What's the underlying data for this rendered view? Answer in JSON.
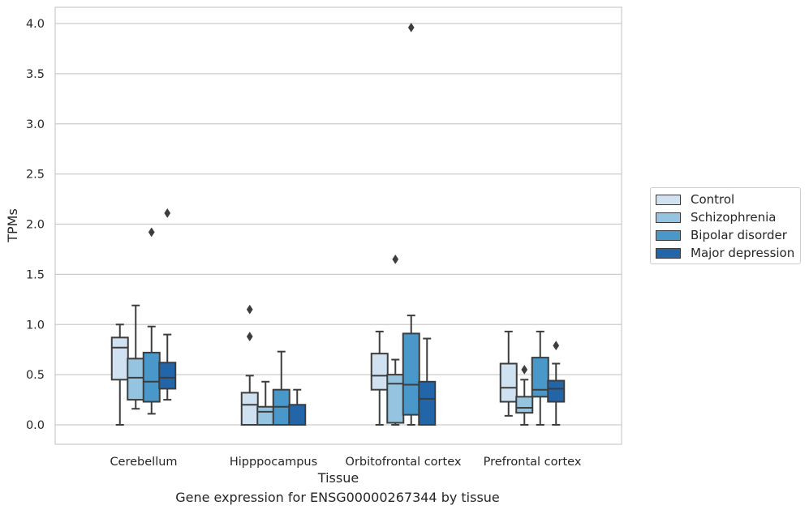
{
  "chart_data": {
    "type": "box",
    "ylabel": "TPMs",
    "xlabel": "Tissue",
    "ylim": [
      -0.19,
      4.17
    ],
    "yticks": [
      "0.0",
      "0.5",
      "1.0",
      "1.5",
      "2.0",
      "2.5",
      "3.0",
      "3.5",
      "4.0"
    ],
    "grid": true,
    "legend_position": "right",
    "categories": [
      "Cerebellum",
      "Hipppocampus",
      "Orbitofrontal cortex",
      "Prefrontal cortex"
    ],
    "series": [
      {
        "name": "Control",
        "color": "#d0e1f2",
        "boxes": [
          {
            "whislo": 0.0,
            "q1": 0.45,
            "med": 0.77,
            "q3": 0.87,
            "whishi": 1.0,
            "fliers": []
          },
          {
            "whislo": 0.0,
            "q1": 0.0,
            "med": 0.2,
            "q3": 0.32,
            "whishi": 0.49,
            "fliers": [
              0.88,
              1.15
            ]
          },
          {
            "whislo": 0.0,
            "q1": 0.35,
            "med": 0.49,
            "q3": 0.71,
            "whishi": 0.93,
            "fliers": []
          },
          {
            "whislo": 0.09,
            "q1": 0.23,
            "med": 0.37,
            "q3": 0.61,
            "whishi": 0.93,
            "fliers": []
          }
        ]
      },
      {
        "name": "Schizophrenia",
        "color": "#94c4df",
        "boxes": [
          {
            "whislo": 0.16,
            "q1": 0.25,
            "med": 0.47,
            "q3": 0.66,
            "whishi": 1.19,
            "fliers": []
          },
          {
            "whislo": 0.0,
            "q1": 0.0,
            "med": 0.13,
            "q3": 0.18,
            "whishi": 0.43,
            "fliers": []
          },
          {
            "whislo": 0.0,
            "q1": 0.02,
            "med": 0.41,
            "q3": 0.5,
            "whishi": 0.65,
            "fliers": [
              1.65
            ]
          },
          {
            "whislo": 0.0,
            "q1": 0.12,
            "med": 0.17,
            "q3": 0.28,
            "whishi": 0.45,
            "fliers": [
              0.55
            ]
          }
        ]
      },
      {
        "name": "Bipolar disorder",
        "color": "#4a98c9",
        "boxes": [
          {
            "whislo": 0.11,
            "q1": 0.23,
            "med": 0.43,
            "q3": 0.72,
            "whishi": 0.98,
            "fliers": [
              1.92
            ]
          },
          {
            "whislo": 0.0,
            "q1": 0.0,
            "med": 0.18,
            "q3": 0.35,
            "whishi": 0.73,
            "fliers": []
          },
          {
            "whislo": 0.0,
            "q1": 0.1,
            "med": 0.4,
            "q3": 0.91,
            "whishi": 1.09,
            "fliers": [
              3.96
            ]
          },
          {
            "whislo": 0.0,
            "q1": 0.28,
            "med": 0.35,
            "q3": 0.67,
            "whishi": 0.93,
            "fliers": []
          }
        ]
      },
      {
        "name": "Major depression",
        "color": "#2365a9",
        "boxes": [
          {
            "whislo": 0.25,
            "q1": 0.36,
            "med": 0.47,
            "q3": 0.62,
            "whishi": 0.9,
            "fliers": [
              2.11
            ]
          },
          {
            "whislo": 0.0,
            "q1": 0.0,
            "med": 0.0,
            "q3": 0.2,
            "whishi": 0.35,
            "fliers": []
          },
          {
            "whislo": 0.0,
            "q1": 0.0,
            "med": 0.26,
            "q3": 0.43,
            "whishi": 0.86,
            "fliers": []
          },
          {
            "whislo": 0.0,
            "q1": 0.23,
            "med": 0.36,
            "q3": 0.44,
            "whishi": 0.61,
            "fliers": [
              0.79
            ]
          }
        ]
      }
    ]
  },
  "caption": "Gene expression for ENSG00000267344 by tissue"
}
